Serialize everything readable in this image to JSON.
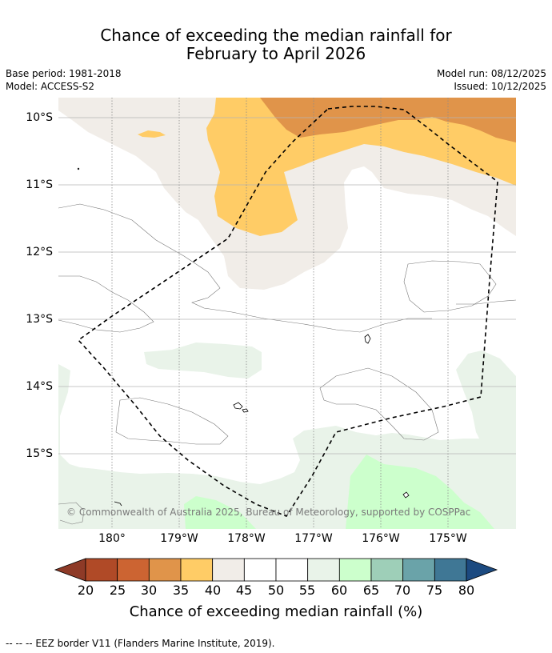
{
  "title": {
    "line1": "Chance of exceeding the median rainfall for",
    "line2": "February to April 2026"
  },
  "info": {
    "base_period": "Base period: 1981-2018",
    "model": "Model: ACCESS-S2",
    "model_run": "Model run: 08/12/2025",
    "issued": "Issued: 10/12/2025"
  },
  "map": {
    "lat_labels": [
      "10°S",
      "11°S",
      "12°S",
      "13°S",
      "14°S",
      "15°S"
    ],
    "lon_labels": [
      "180°",
      "179°W",
      "178°W",
      "177°W",
      "176°W",
      "175°W"
    ],
    "copyright": "© Commonwealth of Australia 2025, Bureau of Meteorology, supported by COSPPac"
  },
  "legend": {
    "colors": [
      "#8e3a27",
      "#b04a27",
      "#cc6432",
      "#e0944a",
      "#ffcc66",
      "#f1ede8",
      "#ffffff",
      "#ffffff",
      "#e9f3e9",
      "#ccffcc",
      "#9ecfb8",
      "#6aa3a9",
      "#3f7795",
      "#1c4a80"
    ],
    "ticks": [
      "20",
      "25",
      "30",
      "35",
      "40",
      "45",
      "50",
      "55",
      "60",
      "65",
      "70",
      "75",
      "80"
    ],
    "label": "Chance of exceeding median rainfall (%)"
  },
  "footnote": "--  --  -- EEZ border V11 (Flanders Marine Institute, 2019)."
}
